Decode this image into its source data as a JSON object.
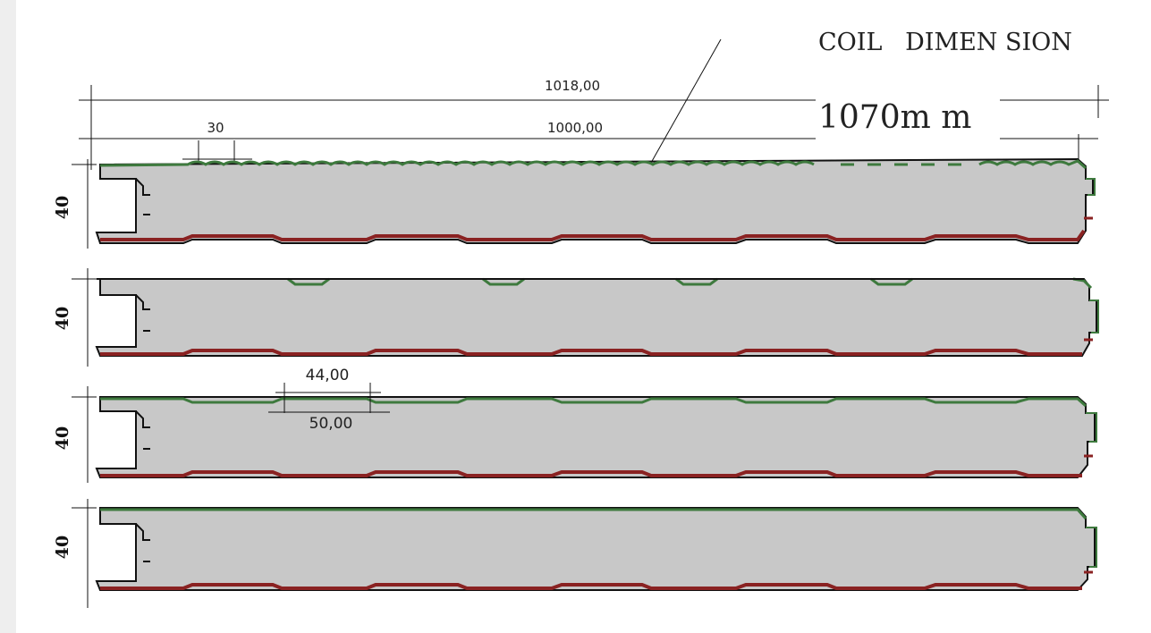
{
  "note": {
    "line1": "COIL   DIMEN SION",
    "line2": "1070m m"
  },
  "dimensions": {
    "overall_width": "1018,00",
    "effective_width": "1000,00",
    "pitch_top": "30",
    "rib_top": "44,00",
    "rib_bottom": "50,00"
  },
  "panels": [
    {
      "thickness_label": "40",
      "top_profile": "micro-wave"
    },
    {
      "thickness_label": "40",
      "top_profile": "sparse-ribs"
    },
    {
      "thickness_label": "40",
      "top_profile": "ribbed"
    },
    {
      "thickness_label": "40",
      "top_profile": "flat"
    }
  ],
  "colors": {
    "core": "#c8c8c8",
    "top_skin": "#3e7a3e",
    "bottom_skin": "#8a2222",
    "outline": "#111111"
  }
}
